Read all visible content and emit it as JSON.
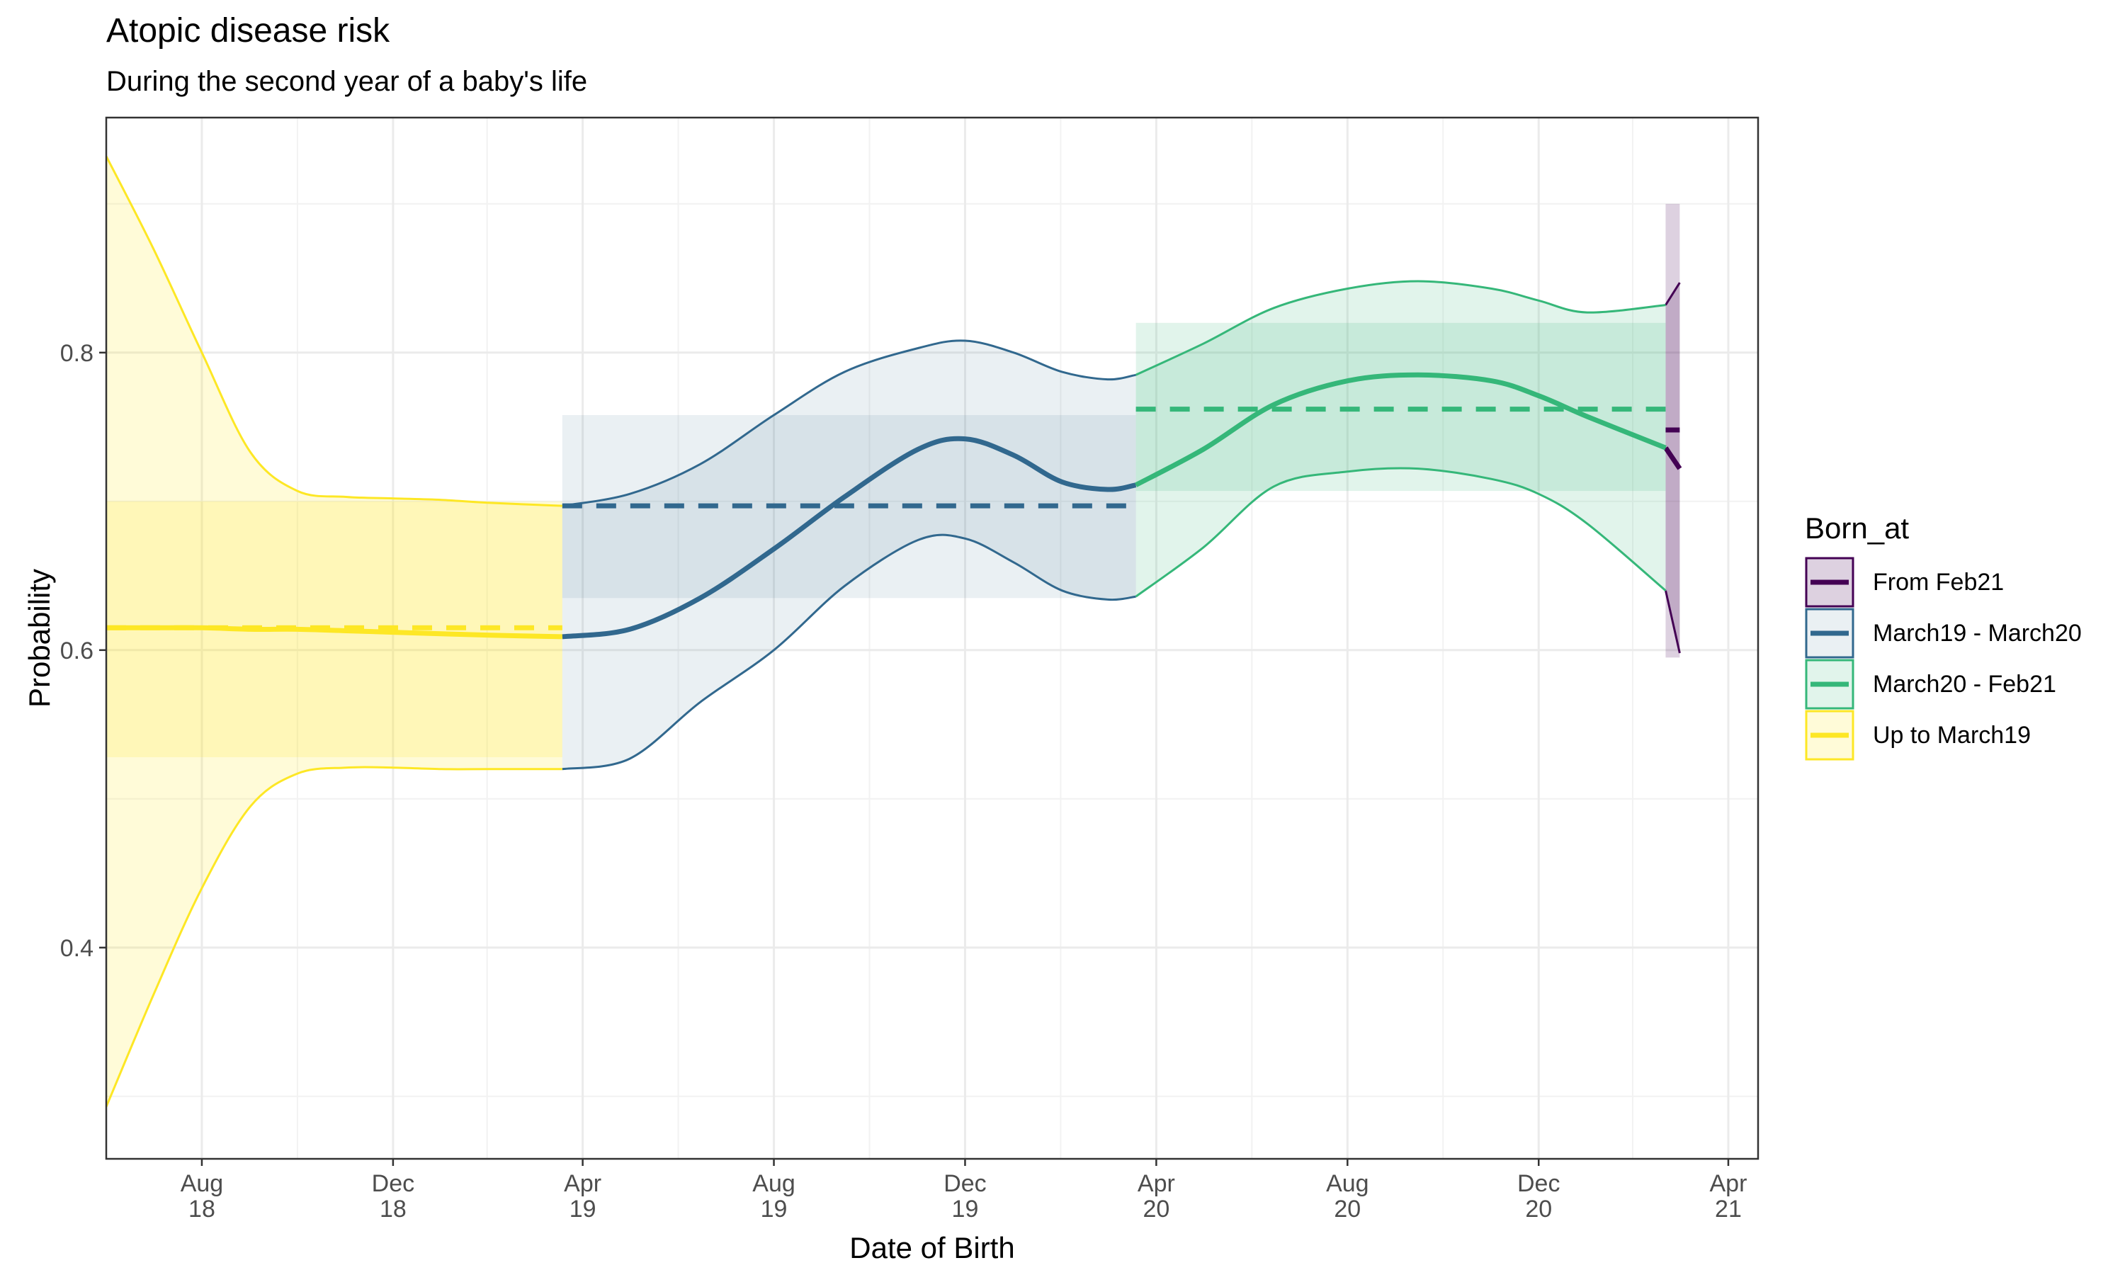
{
  "chart_data": {
    "type": "line",
    "title": "Atopic disease risk",
    "subtitle": "During the second year of a baby's life",
    "xlabel": "Date of Birth",
    "ylabel": "Probability",
    "xlim": [
      "2018-06-01",
      "2021-04-20"
    ],
    "ylim": [
      0.258,
      0.958
    ],
    "grid": true,
    "x_ticks": [
      {
        "date": "2018-08-01",
        "label1": "Aug",
        "label2": "18"
      },
      {
        "date": "2018-12-01",
        "label1": "Dec",
        "label2": "18"
      },
      {
        "date": "2019-04-01",
        "label1": "Apr",
        "label2": "19"
      },
      {
        "date": "2019-08-01",
        "label1": "Aug",
        "label2": "19"
      },
      {
        "date": "2019-12-01",
        "label1": "Dec",
        "label2": "19"
      },
      {
        "date": "2020-04-01",
        "label1": "Apr",
        "label2": "20"
      },
      {
        "date": "2020-08-01",
        "label1": "Aug",
        "label2": "20"
      },
      {
        "date": "2020-12-01",
        "label1": "Dec",
        "label2": "20"
      },
      {
        "date": "2021-04-01",
        "label1": "Apr",
        "label2": "21"
      }
    ],
    "y_ticks": [
      0.4,
      0.6,
      0.8
    ],
    "y_tick_labels": [
      "0.4",
      "0.6",
      "0.8"
    ],
    "legend": {
      "title": "Born_at",
      "position": "right"
    },
    "series": [
      {
        "name": "From Feb21",
        "color": "#440154",
        "fill_alpha": 0.18,
        "mean": 0.748,
        "mean_ci": [
          0.595,
          0.9
        ],
        "x": [
          "2021-02-20",
          "2021-03-01"
        ],
        "fit": [
          0.736,
          0.722
        ],
        "lower": [
          0.64,
          0.598
        ],
        "upper": [
          0.832,
          0.847
        ]
      },
      {
        "name": "March19 - March20",
        "color": "#31688e",
        "fill_alpha": 0.1,
        "mean": 0.697,
        "mean_ci": [
          0.635,
          0.758
        ],
        "x": [
          "2019-03-19",
          "2019-05-01",
          "2019-06-15",
          "2019-08-01",
          "2019-09-15",
          "2019-11-01",
          "2019-12-01",
          "2020-01-01",
          "2020-02-01",
          "2020-03-01",
          "2020-03-19"
        ],
        "fit": [
          0.609,
          0.614,
          0.635,
          0.668,
          0.703,
          0.735,
          0.742,
          0.731,
          0.713,
          0.708,
          0.711
        ],
        "lower": [
          0.52,
          0.527,
          0.565,
          0.6,
          0.643,
          0.674,
          0.675,
          0.659,
          0.64,
          0.634,
          0.636
        ],
        "upper": [
          0.697,
          0.705,
          0.725,
          0.758,
          0.787,
          0.803,
          0.808,
          0.8,
          0.787,
          0.782,
          0.785
        ]
      },
      {
        "name": "March20 - Feb21",
        "color": "#35b779",
        "fill_alpha": 0.15,
        "mean": 0.762,
        "mean_ci": [
          0.707,
          0.82
        ],
        "x": [
          "2020-03-19",
          "2020-05-01",
          "2020-06-15",
          "2020-08-01",
          "2020-09-15",
          "2020-11-01",
          "2020-12-01",
          "2021-01-01",
          "2021-02-20"
        ],
        "fit": [
          0.711,
          0.735,
          0.765,
          0.781,
          0.785,
          0.781,
          0.771,
          0.757,
          0.736
        ],
        "lower": [
          0.636,
          0.669,
          0.71,
          0.72,
          0.722,
          0.715,
          0.705,
          0.685,
          0.64
        ],
        "upper": [
          0.785,
          0.806,
          0.83,
          0.843,
          0.848,
          0.843,
          0.835,
          0.827,
          0.832
        ]
      },
      {
        "name": "Up to March19",
        "color": "#fde725",
        "fill_alpha": 0.18,
        "mean": 0.615,
        "mean_ci": [
          0.528,
          0.7
        ],
        "x": [
          "2018-06-01",
          "2018-07-01",
          "2018-08-01",
          "2018-09-01",
          "2018-10-01",
          "2018-11-01",
          "2018-12-01",
          "2019-01-01",
          "2019-02-01",
          "2019-03-19"
        ],
        "fit": [
          0.615,
          0.615,
          0.615,
          0.614,
          0.614,
          0.613,
          0.612,
          0.611,
          0.61,
          0.609
        ],
        "lower": [
          0.293,
          0.368,
          0.44,
          0.495,
          0.517,
          0.521,
          0.521,
          0.52,
          0.52,
          0.52
        ],
        "upper": [
          0.932,
          0.87,
          0.8,
          0.733,
          0.707,
          0.703,
          0.702,
          0.701,
          0.699,
          0.697
        ]
      }
    ]
  }
}
